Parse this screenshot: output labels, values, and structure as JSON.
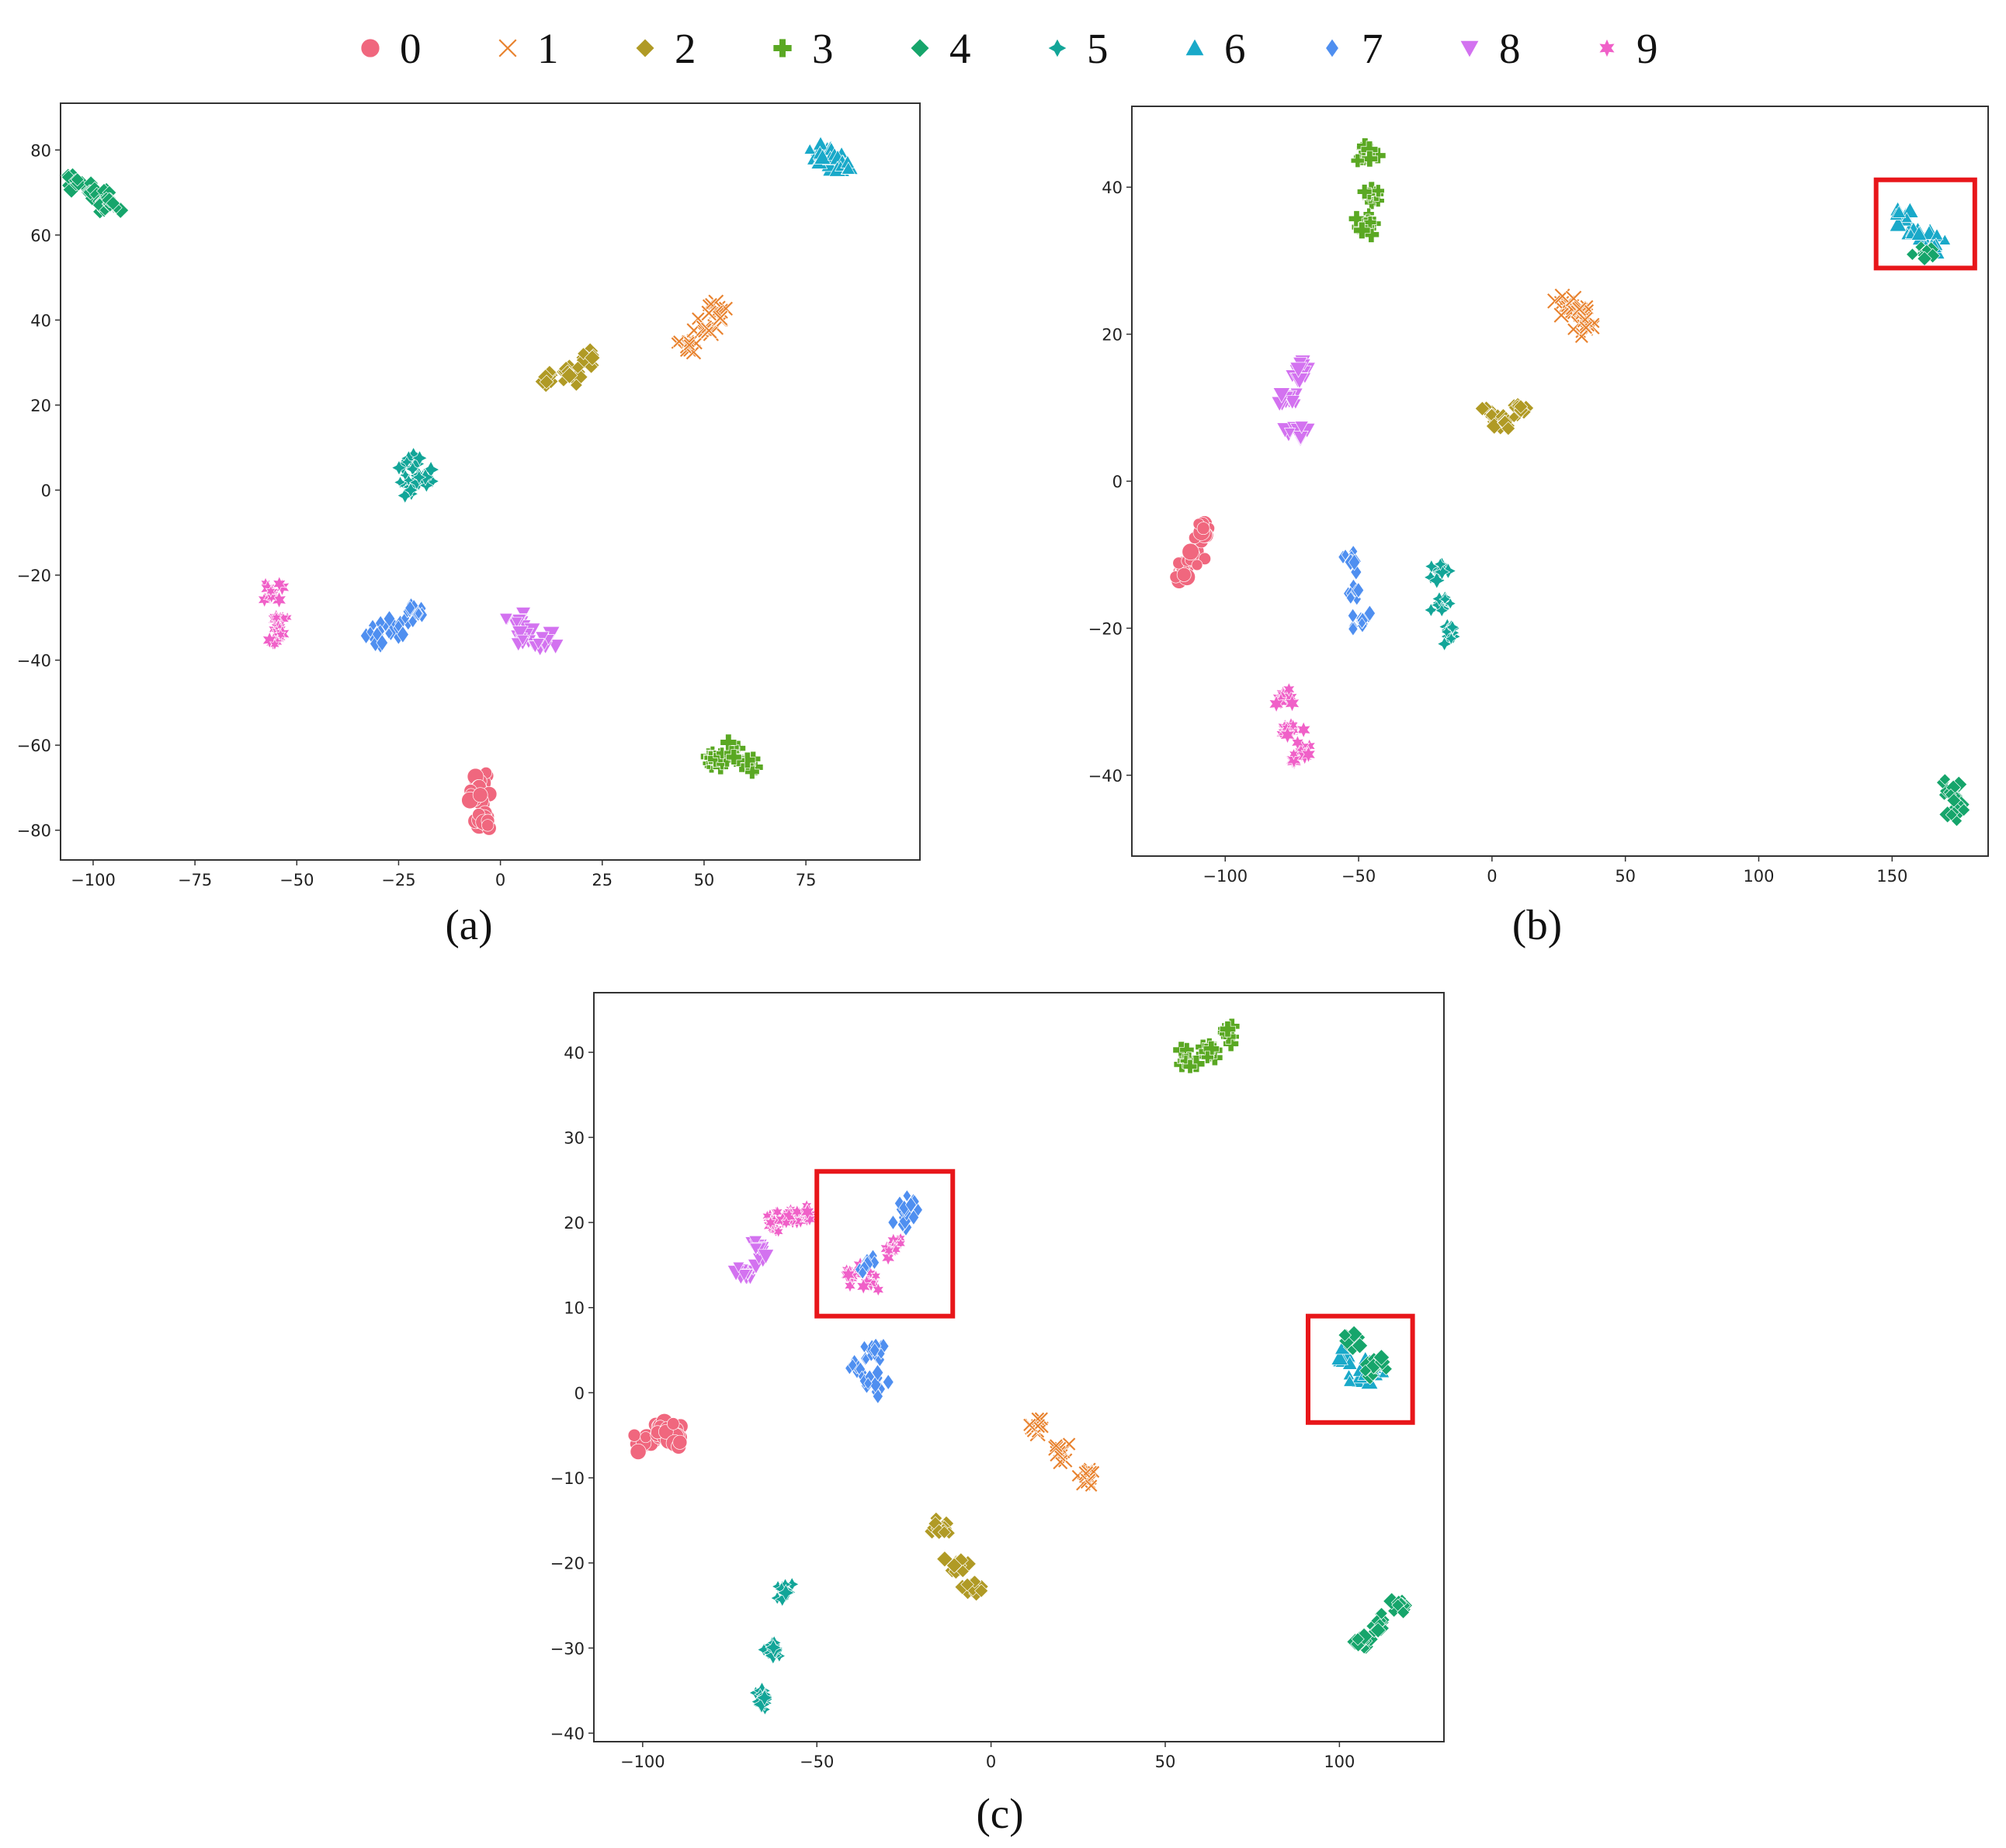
{
  "legend": {
    "placement": "top-center",
    "entries": [
      {
        "label": "0",
        "color": "#f0677e",
        "marker": "circle"
      },
      {
        "label": "1",
        "color": "#e8822e",
        "marker": "x"
      },
      {
        "label": "2",
        "color": "#b09a25",
        "marker": "diamond"
      },
      {
        "label": "3",
        "color": "#5aa823",
        "marker": "plus"
      },
      {
        "label": "4",
        "color": "#16a56b",
        "marker": "diamond"
      },
      {
        "label": "5",
        "color": "#12a598",
        "marker": "star4"
      },
      {
        "label": "6",
        "color": "#19a9c9",
        "marker": "triangle-up"
      },
      {
        "label": "7",
        "color": "#4f8ff0",
        "marker": "diamond-thin"
      },
      {
        "label": "8",
        "color": "#d372f0",
        "marker": "triangle-down"
      },
      {
        "label": "9",
        "color": "#f060c8",
        "marker": "star6"
      }
    ]
  },
  "chart_data": [
    {
      "type": "scatter",
      "caption": "(a)",
      "title": "",
      "xlabel": "",
      "ylabel": "",
      "xlim": [
        -108,
        103
      ],
      "ylim": [
        -87,
        91
      ],
      "xticks": [
        -100,
        -75,
        -50,
        -25,
        0,
        25,
        50,
        75
      ],
      "yticks": [
        -80,
        -60,
        -40,
        -20,
        0,
        20,
        40,
        60,
        80
      ],
      "grid": false,
      "clusters": [
        {
          "label": "4",
          "points": [
            [
              -104,
              72
            ],
            [
              -101,
              70
            ],
            [
              -98,
              68
            ],
            [
              -95,
              67
            ]
          ]
        },
        {
          "label": "6",
          "points": [
            [
              78,
              80
            ],
            [
              81,
              78
            ],
            [
              84,
              76
            ]
          ]
        },
        {
          "label": "1",
          "points": [
            [
              46,
              34
            ],
            [
              50,
              38
            ],
            [
              53,
              42
            ]
          ]
        },
        {
          "label": "2",
          "points": [
            [
              12,
              27
            ],
            [
              17,
              27
            ],
            [
              21,
              31
            ]
          ]
        },
        {
          "label": "5",
          "points": [
            [
              -22,
              6
            ],
            [
              -22,
              1
            ],
            [
              -19,
              3
            ]
          ]
        },
        {
          "label": "9",
          "points": [
            [
              -56,
              -24
            ],
            [
              -55,
              -30
            ],
            [
              -54,
              -34
            ]
          ]
        },
        {
          "label": "7",
          "points": [
            [
              -30,
              -34
            ],
            [
              -25,
              -32
            ],
            [
              -20,
              -29
            ]
          ]
        },
        {
          "label": "8",
          "points": [
            [
              4,
              -31
            ],
            [
              6,
              -35
            ],
            [
              11,
              -36
            ]
          ]
        },
        {
          "label": "3",
          "points": [
            [
              52,
              -63
            ],
            [
              56,
              -62
            ],
            [
              60,
              -64
            ]
          ]
        },
        {
          "label": "0",
          "points": [
            [
              -6,
              -68
            ],
            [
              -5,
              -72
            ],
            [
              -4,
              -77
            ]
          ]
        }
      ],
      "highlight_boxes": []
    },
    {
      "type": "scatter",
      "caption": "(b)",
      "title": "",
      "xlabel": "",
      "ylabel": "",
      "xlim": [
        -135,
        186
      ],
      "ylim": [
        -51,
        51
      ],
      "xticks": [
        -100,
        -50,
        0,
        50,
        100,
        150
      ],
      "yticks": [
        -40,
        -20,
        0,
        20,
        40
      ],
      "grid": false,
      "clusters": [
        {
          "label": "3",
          "points": [
            [
              -46,
              44
            ],
            [
              -46,
              39
            ],
            [
              -47,
              35
            ]
          ]
        },
        {
          "label": "6",
          "points": [
            [
              155,
              36
            ],
            [
              160,
              34
            ],
            [
              166,
              32
            ]
          ]
        },
        {
          "label": "4",
          "points": [
            [
              172,
              -42
            ],
            [
              174,
              -45
            ],
            [
              162,
              31
            ]
          ]
        },
        {
          "label": "1",
          "points": [
            [
              28,
              24
            ],
            [
              33,
              23
            ],
            [
              35,
              21
            ]
          ]
        },
        {
          "label": "8",
          "points": [
            [
              -73,
              15
            ],
            [
              -76,
              11
            ],
            [
              -73,
              7
            ]
          ]
        },
        {
          "label": "2",
          "points": [
            [
              0,
              9
            ],
            [
              5,
              8
            ],
            [
              9,
              10
            ]
          ]
        },
        {
          "label": "0",
          "points": [
            [
              -116,
              -12
            ],
            [
              -112,
              -10
            ],
            [
              -108,
              -7
            ]
          ]
        },
        {
          "label": "7",
          "points": [
            [
              -53,
              -11
            ],
            [
              -50,
              -15
            ],
            [
              -49,
              -19
            ]
          ]
        },
        {
          "label": "5",
          "points": [
            [
              -21,
              -12
            ],
            [
              -19,
              -17
            ],
            [
              -16,
              -21
            ]
          ]
        },
        {
          "label": "9",
          "points": [
            [
              -78,
              -29
            ],
            [
              -75,
              -34
            ],
            [
              -72,
              -37
            ]
          ]
        }
      ],
      "highlight_boxes": [
        {
          "x": [
            144,
            181
          ],
          "y": [
            29,
            41
          ]
        }
      ]
    },
    {
      "type": "scatter",
      "caption": "(c)",
      "title": "",
      "xlabel": "",
      "ylabel": "",
      "xlim": [
        -114,
        130
      ],
      "ylim": [
        -41,
        47
      ],
      "xticks": [
        -100,
        -50,
        0,
        50,
        100
      ],
      "yticks": [
        -40,
        -30,
        -20,
        -10,
        0,
        10,
        20,
        30,
        40
      ],
      "grid": false,
      "clusters": [
        {
          "label": "3",
          "points": [
            [
              56,
              39
            ],
            [
              62,
              40
            ],
            [
              68,
              42
            ]
          ]
        },
        {
          "label": "9",
          "points": [
            [
              -63,
              20
            ],
            [
              -58,
              21
            ],
            [
              -53,
              21
            ],
            [
              -40,
              14
            ],
            [
              -35,
              13
            ],
            [
              -28,
              17
            ]
          ]
        },
        {
          "label": "8",
          "points": [
            [
              -70,
              14
            ],
            [
              -67,
              17
            ]
          ]
        },
        {
          "label": "7",
          "points": [
            [
              -25,
              20
            ],
            [
              -23,
              22
            ],
            [
              -36,
              15
            ],
            [
              -38,
              3
            ],
            [
              -34,
              5
            ],
            [
              -33,
              1
            ]
          ]
        },
        {
          "label": "6",
          "points": [
            [
              102,
              4
            ],
            [
              106,
              2
            ],
            [
              110,
              3
            ]
          ]
        },
        {
          "label": "4",
          "points": [
            [
              104,
              6
            ],
            [
              110,
              3
            ],
            [
              106,
              -29
            ],
            [
              112,
              -27
            ],
            [
              118,
              -25
            ]
          ]
        },
        {
          "label": "0",
          "points": [
            [
              -100,
              -6
            ],
            [
              -95,
              -4
            ],
            [
              -90,
              -5
            ]
          ]
        },
        {
          "label": "1",
          "points": [
            [
              12,
              -4
            ],
            [
              20,
              -7
            ],
            [
              28,
              -10
            ]
          ]
        },
        {
          "label": "2",
          "points": [
            [
              -15,
              -16
            ],
            [
              -10,
              -20
            ],
            [
              -5,
              -23
            ]
          ]
        },
        {
          "label": "5",
          "points": [
            [
              -60,
              -23
            ],
            [
              -62,
              -30
            ],
            [
              -65,
              -36
            ]
          ]
        }
      ],
      "highlight_boxes": [
        {
          "x": [
            -50,
            -11
          ],
          "y": [
            9,
            26
          ]
        },
        {
          "x": [
            91,
            121
          ],
          "y": [
            -3.5,
            9
          ]
        }
      ]
    }
  ]
}
